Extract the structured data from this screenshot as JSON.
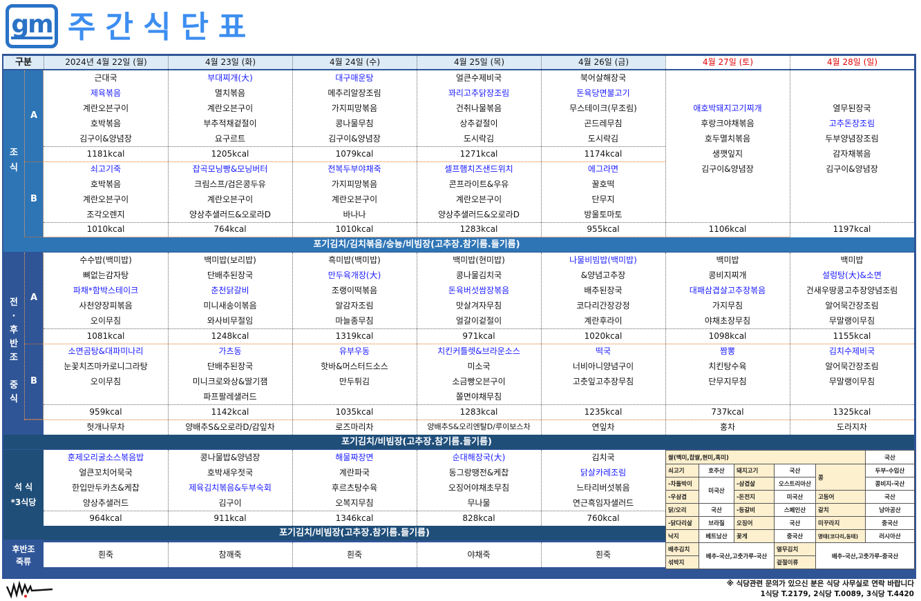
{
  "header": {
    "logo_text": "gm",
    "title": "주간식단표",
    "brand_color": "#2a72c6",
    "title_color": "#3d8ef0"
  },
  "table": {
    "corner_label": "구분",
    "days": [
      {
        "label": "2024년 4월 22일 (월)",
        "weekend": false
      },
      {
        "label": "4월 23일 (화)",
        "weekend": false
      },
      {
        "label": "4월 24일 (수)",
        "weekend": false
      },
      {
        "label": "4월 25일 (목)",
        "weekend": false
      },
      {
        "label": "4월 26일 (금)",
        "weekend": false
      },
      {
        "label": "4월 27일 (토)",
        "weekend": true
      },
      {
        "label": "4월 28일 (일)",
        "weekend": true
      }
    ]
  },
  "colors": {
    "highlight": "#1a1aff",
    "weekend": "#e00000",
    "breakfast": "#2e75b6",
    "lunch": "#2f5597",
    "dinner": "#1f4e79",
    "origin_label_bg": "#fdf0cf"
  },
  "breakfast": {
    "label": "조\n식",
    "sub_a": "A",
    "sub_b": "B",
    "A": [
      {
        "items": [
          {
            "t": "근대국"
          },
          {
            "t": "제육볶음",
            "hl": true
          },
          {
            "t": "계란오븐구이"
          },
          {
            "t": "호박볶음"
          },
          {
            "t": "김구이&양념장"
          }
        ],
        "kcal": "1181kcal"
      },
      {
        "items": [
          {
            "t": "부대찌개(大)",
            "hl": true
          },
          {
            "t": "멸치볶음"
          },
          {
            "t": "계란오븐구이"
          },
          {
            "t": "부추적채겉절이"
          },
          {
            "t": "요구르트"
          }
        ],
        "kcal": "1205kcal"
      },
      {
        "items": [
          {
            "t": "대구매운탕",
            "hl": true
          },
          {
            "t": "메추리알장조림"
          },
          {
            "t": "가지피망볶음"
          },
          {
            "t": "콩나물무침"
          },
          {
            "t": "김구이&양념장"
          }
        ],
        "kcal": "1079kcal"
      },
      {
        "items": [
          {
            "t": "얼큰수제비국"
          },
          {
            "t": "꽈리고추닭장조림",
            "hl": true
          },
          {
            "t": "건취나물볶음"
          },
          {
            "t": "상추겉절이"
          },
          {
            "t": "도시락김"
          }
        ],
        "kcal": "1271kcal"
      },
      {
        "items": [
          {
            "t": "북어살해장국"
          },
          {
            "t": "돈육당면불고기",
            "hl": true
          },
          {
            "t": "무스테이크(무조림)"
          },
          {
            "t": "곤드레무침"
          },
          {
            "t": "도시락김"
          }
        ],
        "kcal": "1174kcal"
      }
    ],
    "B": [
      {
        "items": [
          {
            "t": "쇠고기죽",
            "hl": true
          },
          {
            "t": "호박볶음"
          },
          {
            "t": "계란오븐구이"
          },
          {
            "t": "조각오렌지"
          }
        ],
        "kcal": "1010kcal"
      },
      {
        "items": [
          {
            "t": "잡곡모닝빵&모닝버터",
            "hl": true
          },
          {
            "t": "크림스프/검은콩두유"
          },
          {
            "t": "계란오븐구이"
          },
          {
            "t": "양상추샐러드&오로라D"
          }
        ],
        "kcal": "764kcal"
      },
      {
        "items": [
          {
            "t": "전복두부야채죽",
            "hl": true
          },
          {
            "t": "가지피망볶음"
          },
          {
            "t": "계란오븐구이"
          },
          {
            "t": "바나나"
          }
        ],
        "kcal": "1010kcal"
      },
      {
        "items": [
          {
            "t": "셀프햄치즈샌드위치",
            "hl": true
          },
          {
            "t": "콘프라이트&우유"
          },
          {
            "t": "계란오븐구이"
          },
          {
            "t": "양상추샐러드&오로라D"
          }
        ],
        "kcal": "1283kcal"
      },
      {
        "items": [
          {
            "t": "에그라면",
            "hl": true
          },
          {
            "t": "꿀호떡"
          },
          {
            "t": "단무지"
          },
          {
            "t": "방울토마토"
          }
        ],
        "kcal": "955kcal"
      }
    ],
    "weekend": [
      {
        "items": [
          {
            "t": "애호박돼지고기찌개",
            "hl": true
          },
          {
            "t": "후랑크야채볶음"
          },
          {
            "t": "호두멸치볶음"
          },
          {
            "t": "생깻잎지"
          },
          {
            "t": "김구이&양념장"
          }
        ],
        "kcal": "1106kcal"
      },
      {
        "items": [
          {
            "t": "열무된장국"
          },
          {
            "t": "고추돈장조림",
            "hl": true
          },
          {
            "t": "두부양념장조림"
          },
          {
            "t": "감자채볶음"
          },
          {
            "t": "김구이&양념장"
          }
        ],
        "kcal": "1197kcal"
      }
    ],
    "side_dishes": "포기김치/김치볶음/숭늉/비빔장(고추장.참기름.들기름)"
  },
  "lunch": {
    "label": "전\n·\n후\n반\n조\n\n중\n식",
    "sub_a": "A",
    "sub_b": "B",
    "A": [
      {
        "items": [
          {
            "t": "수수밥(백미밥)"
          },
          {
            "t": "뼈없는감자탕"
          },
          {
            "t": "파채*함박스테이크",
            "hl": true
          },
          {
            "t": "사천양장피볶음"
          },
          {
            "t": "오이무침"
          }
        ],
        "kcal": "1081kcal"
      },
      {
        "items": [
          {
            "t": "백미밥(보리밥)"
          },
          {
            "t": "단배추된장국"
          },
          {
            "t": "춘천닭갈비",
            "hl": true
          },
          {
            "t": "미니새송이볶음"
          },
          {
            "t": "와사비무절임"
          }
        ],
        "kcal": "1248kcal"
      },
      {
        "items": [
          {
            "t": "흑미밥(백미밥)"
          },
          {
            "t": "만두육개장(大)",
            "hl": true
          },
          {
            "t": "조랭이떡볶음"
          },
          {
            "t": "알감자조림"
          },
          {
            "t": "마늘종무침"
          }
        ],
        "kcal": "1319kcal"
      },
      {
        "items": [
          {
            "t": "백미밥(현미밥)"
          },
          {
            "t": "콩나물김치국"
          },
          {
            "t": "돈육버섯쌈장볶음",
            "hl": true
          },
          {
            "t": "맛살겨자무침"
          },
          {
            "t": "얼갈이겉절이"
          }
        ],
        "kcal": "971kcal"
      },
      {
        "items": [
          {
            "t": "나물비빔밥(백미밥)",
            "hl": true
          },
          {
            "t": "&양념고추장"
          },
          {
            "t": "배추된장국"
          },
          {
            "t": "코다리간장강정"
          },
          {
            "t": "계란후라이"
          }
        ],
        "kcal": "1020kcal"
      },
      {
        "items": [
          {
            "t": "백미밥"
          },
          {
            "t": "콩비지찌개"
          },
          {
            "t": "대패삼겹살고추장볶음",
            "hl": true
          },
          {
            "t": "가지무침"
          },
          {
            "t": "야채초장무침"
          }
        ],
        "kcal": "1098kcal"
      },
      {
        "items": [
          {
            "t": "백미밥"
          },
          {
            "t": "설렁탕(大)&소면",
            "hl": true
          },
          {
            "t": "건새우땅콩고추장양념조림"
          },
          {
            "t": "알어묵간장조림"
          },
          {
            "t": "무말랭이무침"
          }
        ],
        "kcal": "1155kcal"
      }
    ],
    "B": [
      {
        "items": [
          {
            "t": "소면곰탕&대파미나리",
            "hl": true
          },
          {
            "t": "눈꽃치즈마카로니그라탕"
          },
          {
            "t": "오이무침"
          }
        ],
        "kcal": "959kcal"
      },
      {
        "items": [
          {
            "t": "가츠동",
            "hl": true
          },
          {
            "t": "단배추된장국"
          },
          {
            "t": "미니크로와상&딸기잼"
          },
          {
            "t": "파프팔레샐러드"
          }
        ],
        "kcal": "1142kcal"
      },
      {
        "items": [
          {
            "t": "유부우동",
            "hl": true
          },
          {
            "t": "핫바&머스터드소스"
          },
          {
            "t": "만두튀김"
          }
        ],
        "kcal": "1035kcal"
      },
      {
        "items": [
          {
            "t": "치킨커틀렛&브라운소스",
            "hl": true
          },
          {
            "t": "미소국"
          },
          {
            "t": "소금빵오븐구이"
          },
          {
            "t": "쫄면야채무침"
          }
        ],
        "kcal": "1283kcal"
      },
      {
        "items": [
          {
            "t": "떡국",
            "hl": true
          },
          {
            "t": "너비아니양념구이"
          },
          {
            "t": "고춧잎고추장무침"
          }
        ],
        "kcal": "1235kcal"
      },
      {
        "items": [
          {
            "t": "짬뽕",
            "hl": true
          },
          {
            "t": "치킨탕수육"
          },
          {
            "t": "단무지무침"
          }
        ],
        "kcal": "737kcal"
      },
      {
        "items": [
          {
            "t": "김치수제비국",
            "hl": true
          },
          {
            "t": "알어묵간장조림"
          },
          {
            "t": "무말랭이무침"
          }
        ],
        "kcal": "1325kcal"
      }
    ],
    "tea": [
      "헛개나무차",
      "양배추S&오로라D/감잎차",
      "로즈마리차",
      "양배추S&오리엔탈D/루이보스차",
      "연잎차",
      "홍차",
      "도라지차"
    ],
    "side_dishes": "포기김치/비빔장(고추장.참기름.들기름)"
  },
  "dinner": {
    "label": "석 식\n*3식당",
    "days": [
      {
        "items": [
          {
            "t": "훈제오리굴소스볶음밥",
            "hl": true
          },
          {
            "t": "얼큰꼬치어묵국"
          },
          {
            "t": "한입만두카츠&케찹"
          },
          {
            "t": "양상추샐러드"
          }
        ],
        "kcal": "964kcal"
      },
      {
        "items": [
          {
            "t": "콩나물밥&양념장"
          },
          {
            "t": "호박새우젓국"
          },
          {
            "t": "제육김치볶음&두부숙회",
            "hl": true
          },
          {
            "t": "김구이"
          }
        ],
        "kcal": "911kcal"
      },
      {
        "items": [
          {
            "t": "해물짜장면",
            "hl": true
          },
          {
            "t": "계란파국"
          },
          {
            "t": "후르츠탕수육"
          },
          {
            "t": "오복지무침"
          }
        ],
        "kcal": "1346kcal"
      },
      {
        "items": [
          {
            "t": "순대해장국(大)",
            "hl": true
          },
          {
            "t": "동그랑땡전&케찹"
          },
          {
            "t": "오징어야채초무침"
          },
          {
            "t": "무나물"
          }
        ],
        "kcal": "828kcal"
      },
      {
        "items": [
          {
            "t": "김치국"
          },
          {
            "t": "닭살카레조림",
            "hl": true
          },
          {
            "t": "느타리버섯볶음"
          },
          {
            "t": "연근흑임자샐러드"
          }
        ],
        "kcal": "760kcal"
      }
    ],
    "side_dishes": "포기김치/비빔장(고추장.참기름.들기름)"
  },
  "porridge": {
    "label": "후반조\n죽류",
    "days": [
      "흰죽",
      "참깨죽",
      "흰죽",
      "야채죽",
      "흰죽"
    ]
  },
  "origin": {
    "rice": {
      "label": "쌀(백미,찹쌀,현미,흑미)",
      "value": "국산"
    },
    "rows": [
      [
        "쇠고기",
        "호주산",
        "돼지고기",
        "국산",
        "콩",
        "두부-수입산"
      ],
      [
        "-차돌박이",
        "미국산",
        "-삼겹살",
        "오스트리아산",
        "",
        "콩비지-국산"
      ],
      [
        "-우삼겹",
        "",
        "-돈전지",
        "미국산",
        "고등어",
        "국산"
      ],
      [
        "닭/오리",
        "국산",
        "-등갈비",
        "스페인산",
        "갈치",
        "남아공산"
      ],
      [
        "-닭다리살",
        "브라질",
        "오징어",
        "국산",
        "미꾸라지",
        "중국산"
      ],
      [
        "낙지",
        "베트남산",
        "꽃게",
        "중국산",
        "명태(코다리,동태)",
        "러시아산"
      ]
    ],
    "kimchi": {
      "l1": "배추김치",
      "l2": "섞박지",
      "v1": "배추-국산,고춧가루-국산",
      "l3": "열무김치",
      "l4": "겉절이류",
      "v2": "배추-국산,고춧가루-중국산"
    }
  },
  "footer": {
    "notice": "※ 식당관련 문의가 있으신 분은 식당 사무실로 연락 바랍니다",
    "phones": "1식당 T.2179, 2식당 T.0089, 3식당 T.4420",
    "signature": "WH"
  }
}
